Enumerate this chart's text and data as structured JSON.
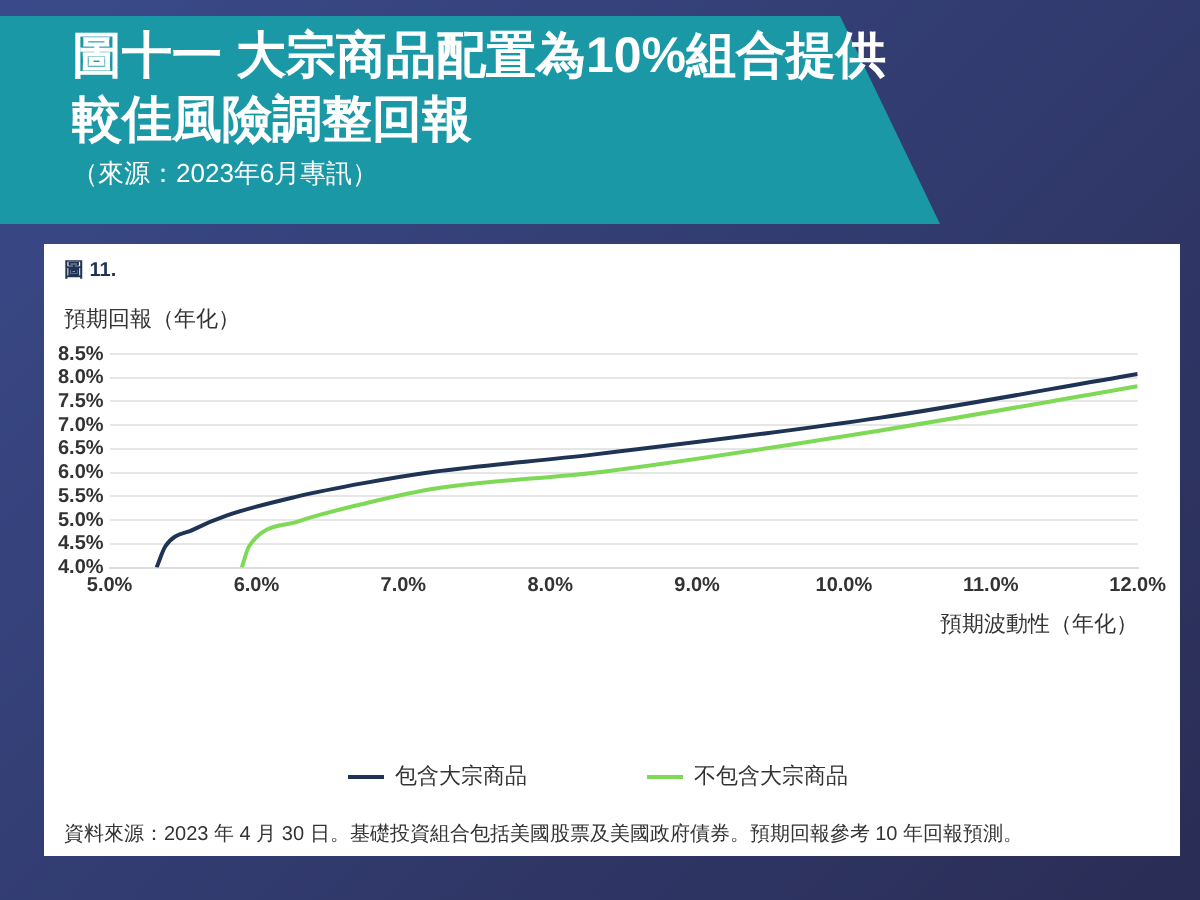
{
  "chart_data": {
    "type": "line",
    "title": "圖十一 大宗商品配置為10%組合提供較佳風險調整回報",
    "subtitle": "（來源：2023年6月專訊）",
    "xlabel": "預期波動性（年化）",
    "ylabel": "預期回報（年化）",
    "annotations": [
      "圖 11.",
      "資料來源：2023 年 4 月 30 日。基礎投資組合包括美國股票及美國政府債券。預期回報參考 10 年回報預測。"
    ],
    "series": [
      {
        "name": "包含大宗商品",
        "color": "#1f3354",
        "x": [
          5.32,
          5.38,
          5.57,
          5.8,
          6.28,
          6.73,
          7.21,
          8.29,
          10.25,
          12.0
        ],
        "values": [
          4.0,
          4.45,
          4.8,
          5.1,
          5.5,
          5.78,
          6.02,
          6.38,
          7.16,
          8.08
        ]
      },
      {
        "name": "不包含大宗商品",
        "color": "#7ed957",
        "x": [
          5.9,
          5.95,
          6.28,
          6.75,
          7.23,
          8.36,
          10.25,
          12.0
        ],
        "values": [
          4.0,
          4.45,
          4.97,
          5.36,
          5.67,
          6.02,
          6.89,
          7.82
        ]
      }
    ],
    "xlim": [
      5,
      12
    ],
    "xticks": [
      {
        "value": 5,
        "label": "5.0%"
      },
      {
        "value": 6,
        "label": "6.0%"
      },
      {
        "value": 7,
        "label": "7.0%"
      },
      {
        "value": 8,
        "label": "8.0%"
      },
      {
        "value": 9,
        "label": "9.0%"
      },
      {
        "value": 10,
        "label": "10.0%"
      },
      {
        "value": 11,
        "label": "11.0%"
      },
      {
        "value": 12,
        "label": "12.0%"
      }
    ],
    "ylim": [
      4,
      8.5
    ],
    "yticks": [
      {
        "value": 4,
        "label": "4.0%"
      },
      {
        "value": 4.5,
        "label": "4.5%"
      },
      {
        "value": 5,
        "label": "5.0%"
      },
      {
        "value": 5.5,
        "label": "5.5%"
      },
      {
        "value": 6,
        "label": "6.0%"
      },
      {
        "value": 6.5,
        "label": "6.5%"
      },
      {
        "value": 7,
        "label": "7.0%"
      },
      {
        "value": 7.5,
        "label": "7.5%"
      },
      {
        "value": 8,
        "label": "8.0%"
      },
      {
        "value": 8.5,
        "label": "8.5%"
      }
    ],
    "grid": "y",
    "legend": "bottom",
    "marker": "none",
    "line_style": "solid"
  }
}
